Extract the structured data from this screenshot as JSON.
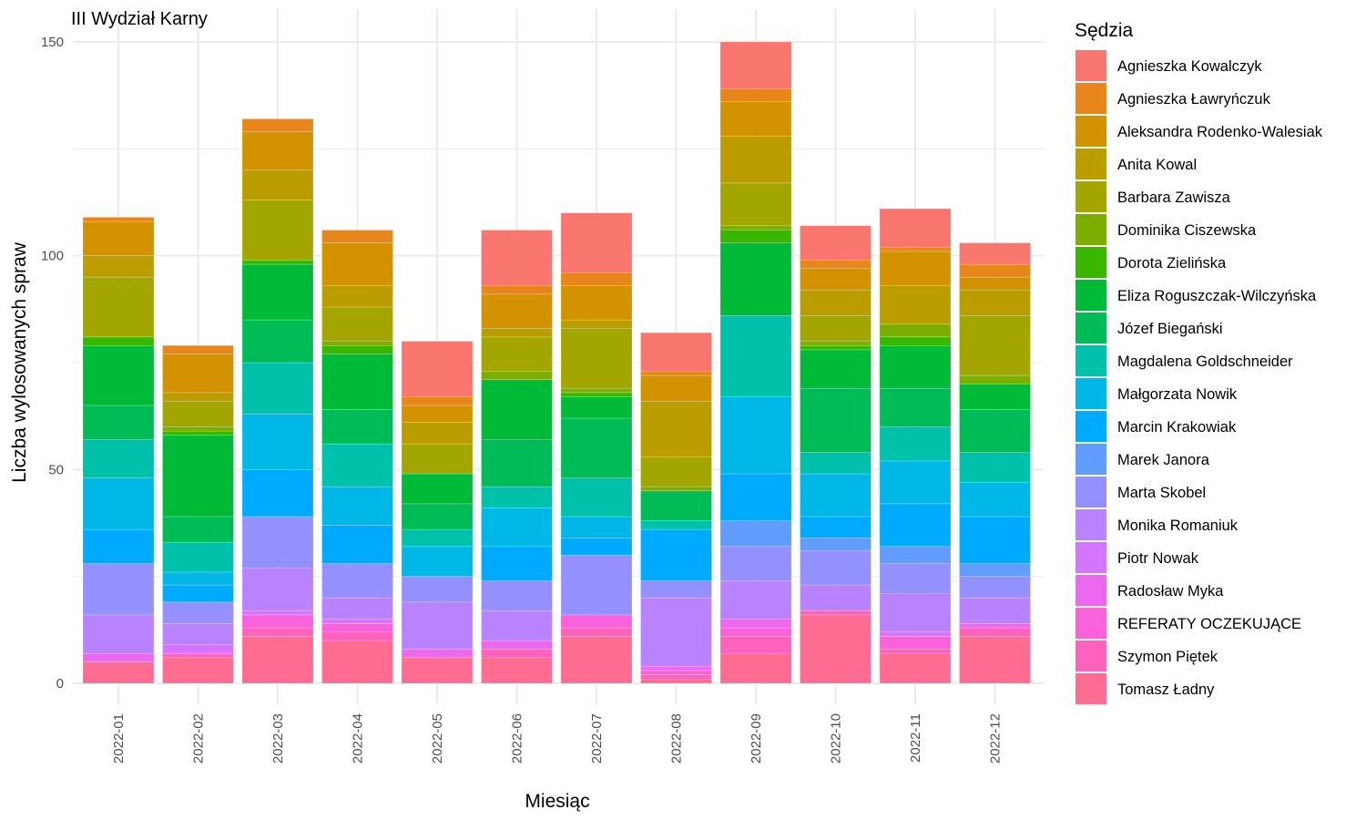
{
  "chart_data": {
    "type": "bar",
    "stacked": true,
    "title": "III Wydział Karny",
    "xlabel": "Miesiąc",
    "ylabel": "Liczba wylosowanych spraw",
    "ylim": [
      0,
      150
    ],
    "yticks": [
      0,
      50,
      100,
      150
    ],
    "grid": true,
    "legend": {
      "title": "Sędzia",
      "position": "right"
    },
    "categories": [
      "2022-01",
      "2022-02",
      "2022-03",
      "2022-04",
      "2022-05",
      "2022-06",
      "2022-07",
      "2022-08",
      "2022-09",
      "2022-10",
      "2022-11",
      "2022-12"
    ],
    "series": [
      {
        "name": "Tomasz Ładny",
        "color": "#FF6C91",
        "values": [
          5,
          6,
          11,
          10,
          6,
          6,
          11,
          1,
          7,
          16,
          7,
          11
        ]
      },
      {
        "name": "Szymon Piętek",
        "color": "#FF62BC",
        "values": [
          0,
          1,
          2,
          2,
          0,
          2,
          2,
          1,
          4,
          1,
          1,
          2
        ]
      },
      {
        "name": "REFERATY OCZEKUJĄCE",
        "color": "#FA62DB",
        "values": [
          0,
          0,
          3,
          2,
          0,
          0,
          3,
          1,
          2,
          0,
          3,
          0
        ]
      },
      {
        "name": "Radosław Myka",
        "color": "#EC69EF",
        "values": [
          2,
          0,
          0,
          0,
          2,
          2,
          0,
          1,
          2,
          0,
          0,
          1
        ]
      },
      {
        "name": "Piotr Nowak",
        "color": "#D575FE",
        "values": [
          0,
          2,
          1,
          1,
          0,
          0,
          0,
          0,
          0,
          0,
          1,
          0
        ]
      },
      {
        "name": "Monika Romaniuk",
        "color": "#B983FF",
        "values": [
          9,
          5,
          10,
          5,
          11,
          7,
          0,
          16,
          9,
          6,
          9,
          6
        ]
      },
      {
        "name": "Marta Skobel",
        "color": "#9590FF",
        "values": [
          12,
          5,
          12,
          8,
          6,
          7,
          14,
          4,
          8,
          8,
          7,
          5
        ]
      },
      {
        "name": "Marek Janora",
        "color": "#619CFF",
        "values": [
          0,
          0,
          0,
          0,
          0,
          0,
          0,
          0,
          6,
          3,
          4,
          3
        ]
      },
      {
        "name": "Marcin Krakowiak",
        "color": "#00ABFD",
        "values": [
          8,
          4,
          11,
          9,
          0,
          8,
          4,
          12,
          11,
          5,
          10,
          11
        ]
      },
      {
        "name": "Małgorzata Nowik",
        "color": "#00B8E7",
        "values": [
          12,
          3,
          13,
          9,
          7,
          9,
          5,
          0,
          18,
          10,
          10,
          8
        ]
      },
      {
        "name": "Magdalena Goldschneider",
        "color": "#00C1A9",
        "values": [
          9,
          7,
          12,
          10,
          4,
          5,
          9,
          2,
          19,
          5,
          8,
          7
        ]
      },
      {
        "name": "Józef Biegański",
        "color": "#00BC56",
        "values": [
          8,
          6,
          10,
          8,
          6,
          11,
          14,
          7,
          0,
          15,
          9,
          10
        ]
      },
      {
        "name": "Eliza Roguszczak-Wilczyńska",
        "color": "#00BA38",
        "values": [
          14,
          19,
          13,
          13,
          7,
          14,
          5,
          0,
          17,
          9,
          10,
          6
        ]
      },
      {
        "name": "Dorota Zielińska",
        "color": "#39B600",
        "values": [
          2,
          1,
          1,
          2,
          0,
          0,
          1,
          0,
          3,
          1,
          2,
          0
        ]
      },
      {
        "name": "Dominika Ciszewska",
        "color": "#7CAE00",
        "values": [
          0,
          1,
          0,
          1,
          0,
          2,
          1,
          1,
          1,
          1,
          3,
          2
        ]
      },
      {
        "name": "Barbara Zawisza",
        "color": "#A3A500",
        "values": [
          14,
          6,
          14,
          8,
          7,
          8,
          14,
          7,
          10,
          6,
          0,
          14
        ]
      },
      {
        "name": "Anita Kowal",
        "color": "#BB9D00",
        "values": [
          5,
          2,
          7,
          5,
          5,
          2,
          2,
          13,
          11,
          6,
          9,
          6
        ]
      },
      {
        "name": "Aleksandra Rodenko-Walesiak",
        "color": "#D39200",
        "values": [
          8,
          9,
          9,
          10,
          4,
          8,
          8,
          6,
          8,
          5,
          8,
          3
        ]
      },
      {
        "name": "Agnieszka Ławryńczuk",
        "color": "#E7861B",
        "values": [
          1,
          2,
          3,
          3,
          2,
          2,
          3,
          1,
          3,
          2,
          1,
          3
        ]
      },
      {
        "name": "Agnieszka Kowalczyk",
        "color": "#F8766D",
        "values": [
          0,
          0,
          0,
          0,
          13,
          13,
          14,
          9,
          11,
          8,
          9,
          5
        ]
      }
    ],
    "legend_order": [
      "Agnieszka Kowalczyk",
      "Agnieszka Ławryńczuk",
      "Aleksandra Rodenko-Walesiak",
      "Anita Kowal",
      "Barbara Zawisza",
      "Dominika Ciszewska",
      "Dorota Zielińska",
      "Eliza Roguszczak-Wilczyńska",
      "Józef Biegański",
      "Magdalena Goldschneider",
      "Małgorzata Nowik",
      "Marcin Krakowiak",
      "Marek Janora",
      "Marta Skobel",
      "Monika Romaniuk",
      "Piotr Nowak",
      "Radosław Myka",
      "REFERATY OCZEKUJĄCE",
      "Szymon Piętek",
      "Tomasz Ładny"
    ]
  }
}
